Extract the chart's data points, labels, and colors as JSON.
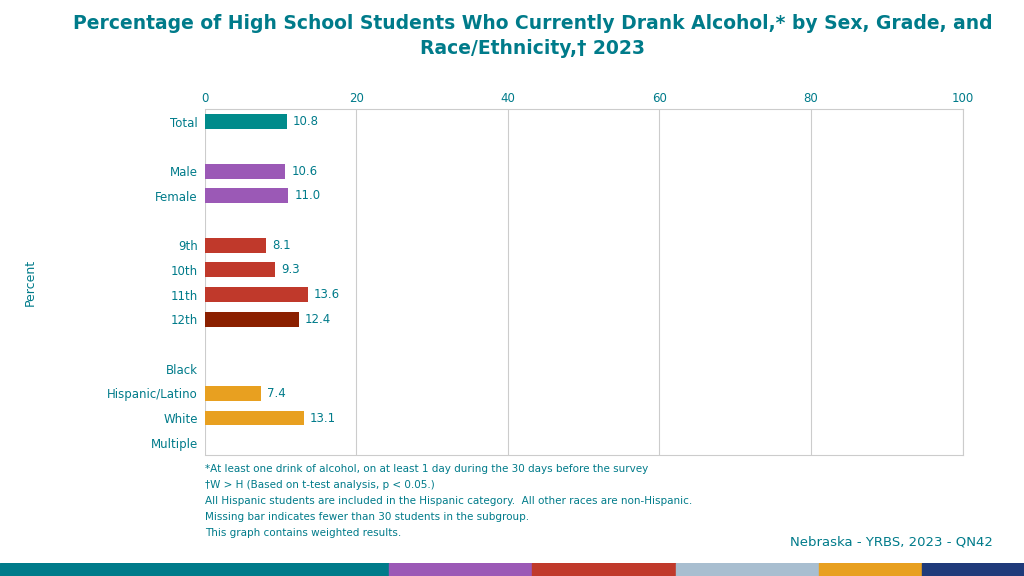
{
  "title": "Percentage of High School Students Who Currently Drank Alcohol,* by Sex, Grade, and\nRace/Ethnicity,† 2023",
  "title_color": "#007B8A",
  "title_fontsize": 13.5,
  "ylabel_text": "Percent",
  "categories": [
    "Total",
    "",
    "Male",
    "Female",
    "",
    "9th",
    "10th",
    "11th",
    "12th",
    "",
    "Black",
    "Hispanic/Latino",
    "White",
    "Multiple"
  ],
  "values": [
    10.8,
    null,
    10.6,
    11.0,
    null,
    8.1,
    9.3,
    13.6,
    12.4,
    null,
    null,
    7.4,
    13.1,
    null
  ],
  "bar_colors": [
    "#008B8B",
    null,
    "#9B59B6",
    "#9B59B6",
    null,
    "#C0392B",
    "#C0392B",
    "#C0392B",
    "#8B2000",
    null,
    null,
    "#E8A020",
    "#E8A020",
    null
  ],
  "xlim": [
    0,
    100
  ],
  "xticks": [
    0,
    20,
    40,
    60,
    80,
    100
  ],
  "grid_color": "#cccccc",
  "bar_height": 0.6,
  "footnote_lines": [
    "*At least one drink of alcohol, on at least 1 day during the 30 days before the survey",
    "†W > H (Based on t-test analysis, p < 0.05.)",
    "All Hispanic students are included in the Hispanic category.  All other races are non-Hispanic.",
    "Missing bar indicates fewer than 30 students in the subgroup.",
    "This graph contains weighted results."
  ],
  "footnote_color": "#007B8A",
  "footnote_fontsize": 7.5,
  "source_text": "Nebraska - YRBS, 2023 - QN42",
  "source_color": "#007B8A",
  "source_fontsize": 9.5,
  "label_fontsize": 8.5,
  "tick_fontsize": 8.5,
  "axis_label_color": "#007B8A",
  "bottom_bar_colors": [
    "#007B8A",
    "#9B59B6",
    "#C0392B",
    "#A8BED0",
    "#E8A020",
    "#1F3A7A"
  ],
  "bottom_bar_widths": [
    0.38,
    0.14,
    0.14,
    0.14,
    0.1,
    0.1
  ],
  "background_color": "#ffffff"
}
